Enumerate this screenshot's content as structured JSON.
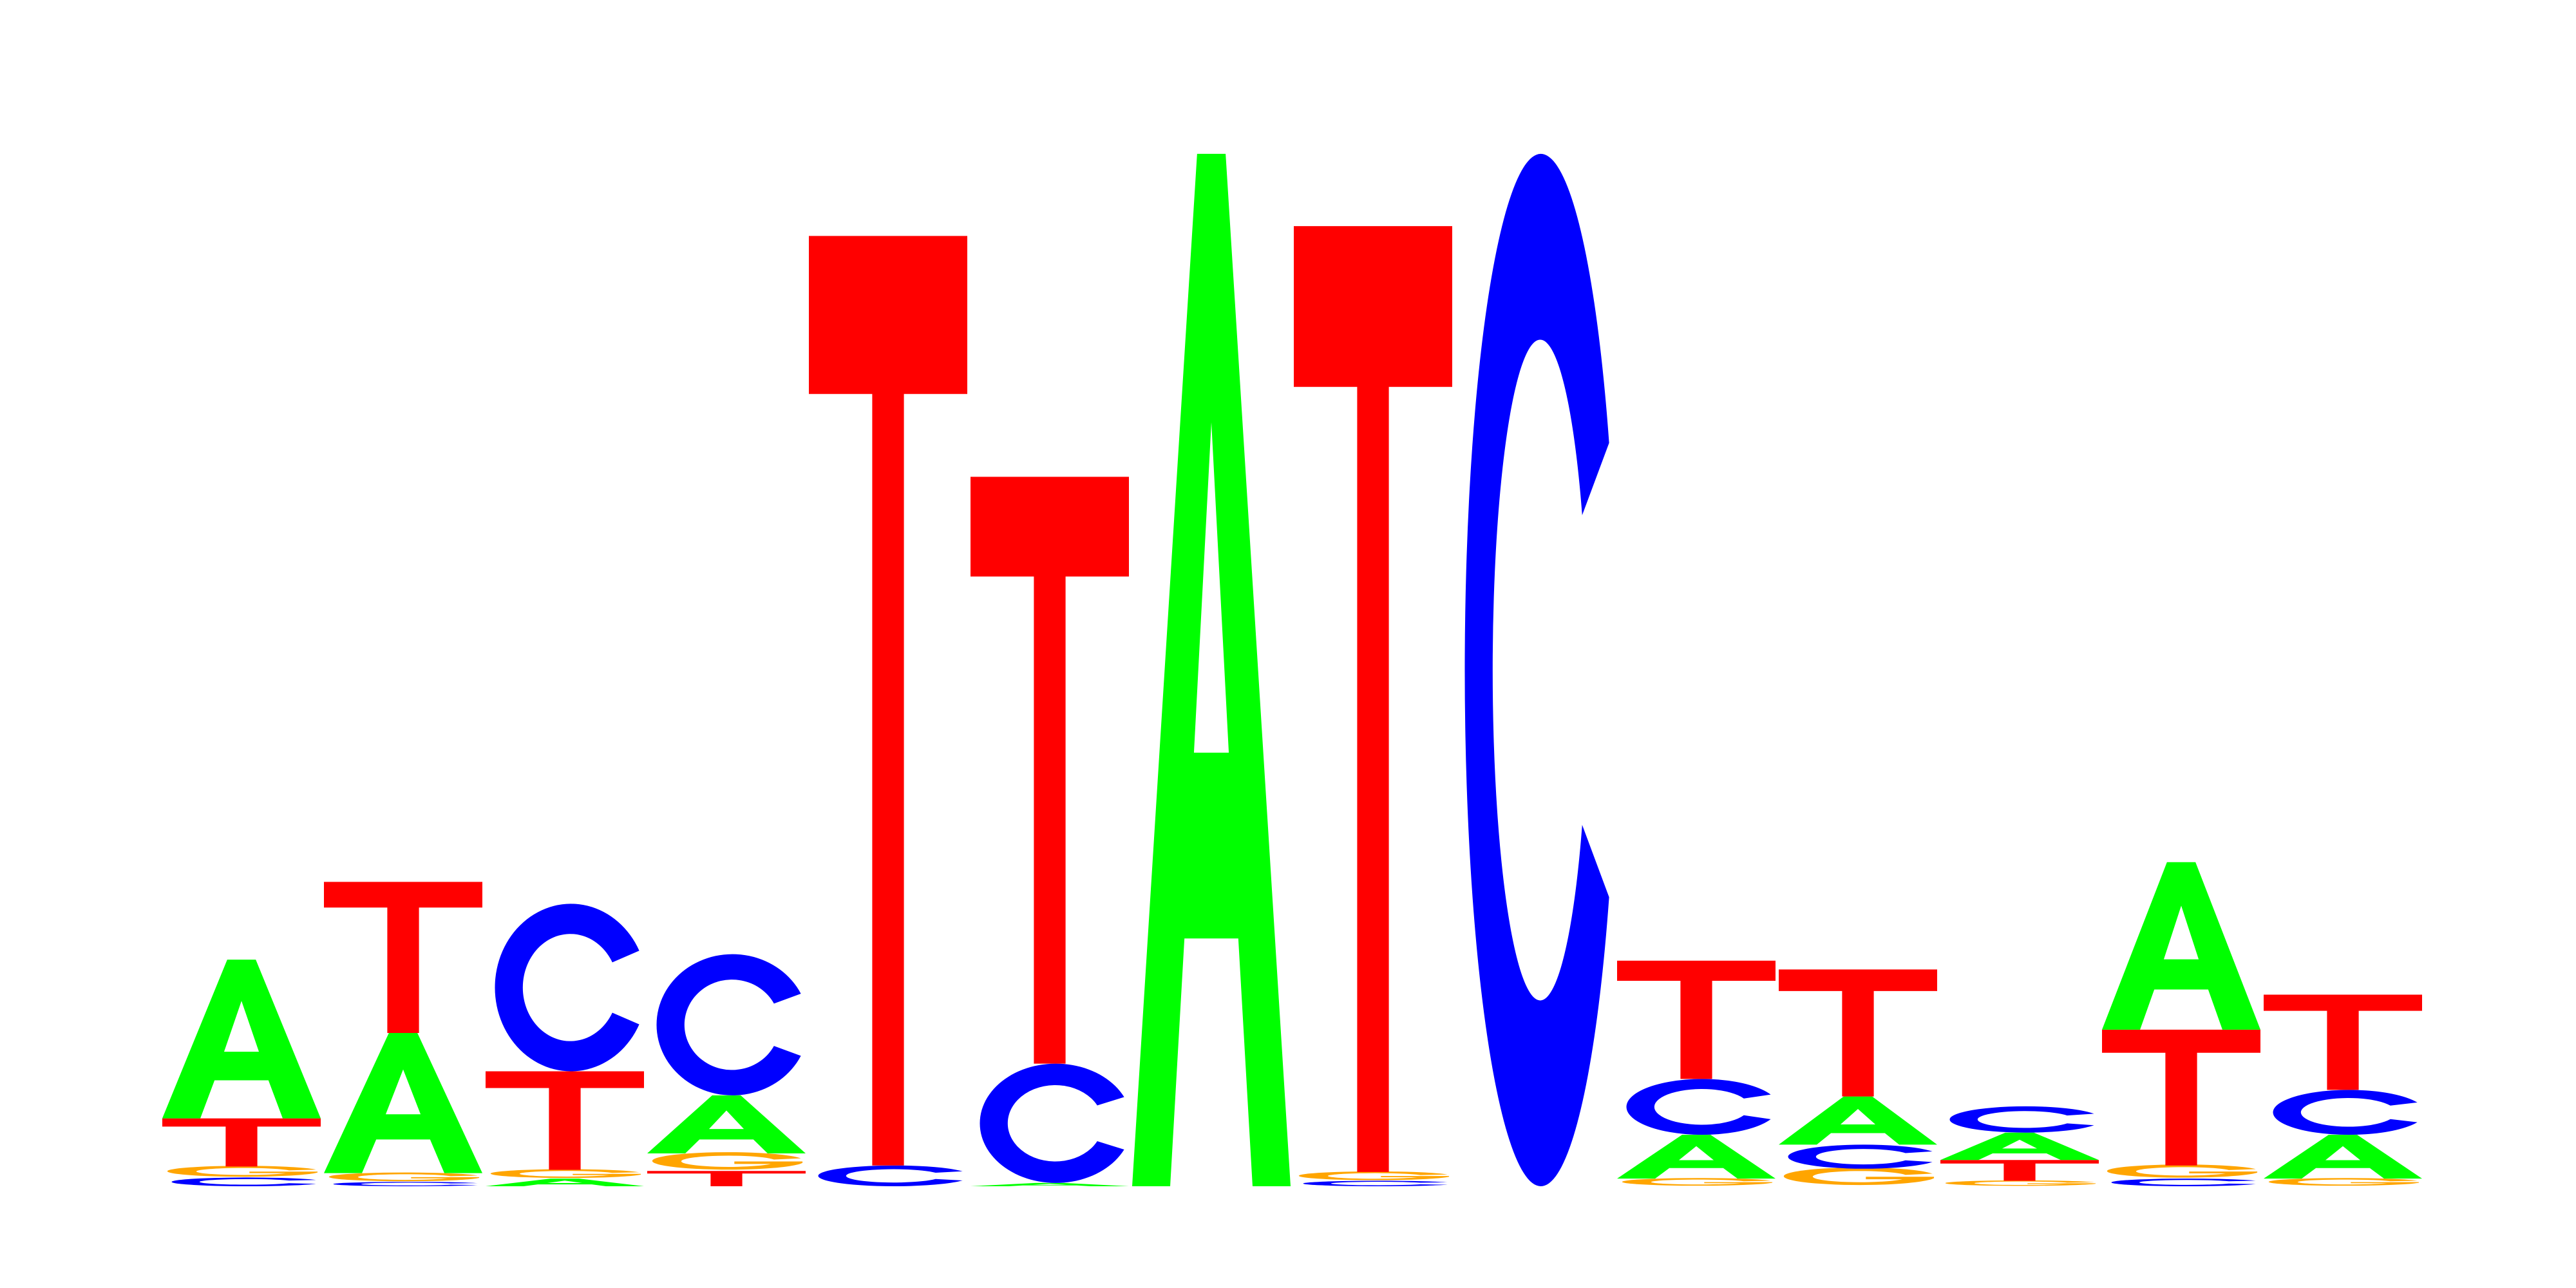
{
  "colors": {
    "A": "#00ff00",
    "C": "#0000ff",
    "G": "#ffa500",
    "T": "#ff0000"
  },
  "motif": {
    "positions": [
      [
        {
          "letter": "C",
          "height": 0.08
        },
        {
          "letter": "G",
          "height": 0.1
        },
        {
          "letter": "T",
          "height": 0.44
        },
        {
          "letter": "A",
          "height": 1.45
        }
      ],
      [
        {
          "letter": "C",
          "height": 0.04
        },
        {
          "letter": "G",
          "height": 0.08
        },
        {
          "letter": "A",
          "height": 1.28
        },
        {
          "letter": "T",
          "height": 1.38
        }
      ],
      [
        {
          "letter": "A",
          "height": 0.07
        },
        {
          "letter": "G",
          "height": 0.08
        },
        {
          "letter": "T",
          "height": 0.9
        },
        {
          "letter": "C",
          "height": 1.53
        }
      ],
      [
        {
          "letter": "T",
          "height": 0.14
        },
        {
          "letter": "G",
          "height": 0.16
        },
        {
          "letter": "A",
          "height": 0.53
        },
        {
          "letter": "C",
          "height": 1.29
        }
      ],
      [
        {
          "letter": "C",
          "height": 0.19
        },
        {
          "letter": "T",
          "height": 8.49
        }
      ],
      [
        {
          "letter": "A",
          "height": 0.03
        },
        {
          "letter": "C",
          "height": 1.09
        },
        {
          "letter": "T",
          "height": 5.36
        }
      ],
      [
        {
          "letter": "A",
          "height": 9.43
        }
      ],
      [
        {
          "letter": "C",
          "height": 0.05
        },
        {
          "letter": "G",
          "height": 0.08
        },
        {
          "letter": "T",
          "height": 8.64
        }
      ],
      [
        {
          "letter": "C",
          "height": 9.43
        }
      ],
      [
        {
          "letter": "G",
          "height": 0.07
        },
        {
          "letter": "A",
          "height": 0.4
        },
        {
          "letter": "C",
          "height": 0.51
        },
        {
          "letter": "T",
          "height": 1.08
        }
      ],
      [
        {
          "letter": "G",
          "height": 0.16
        },
        {
          "letter": "C",
          "height": 0.22
        },
        {
          "letter": "A",
          "height": 0.44
        },
        {
          "letter": "T",
          "height": 1.16
        }
      ],
      [
        {
          "letter": "G",
          "height": 0.05
        },
        {
          "letter": "T",
          "height": 0.19
        },
        {
          "letter": "A",
          "height": 0.25
        },
        {
          "letter": "C",
          "height": 0.24
        }
      ],
      [
        {
          "letter": "C",
          "height": 0.07
        },
        {
          "letter": "G",
          "height": 0.12
        },
        {
          "letter": "T",
          "height": 1.24
        },
        {
          "letter": "A",
          "height": 1.53
        }
      ],
      [
        {
          "letter": "G",
          "height": 0.07
        },
        {
          "letter": "A",
          "height": 0.4
        },
        {
          "letter": "C",
          "height": 0.41
        },
        {
          "letter": "T",
          "height": 0.87
        }
      ]
    ]
  }
}
